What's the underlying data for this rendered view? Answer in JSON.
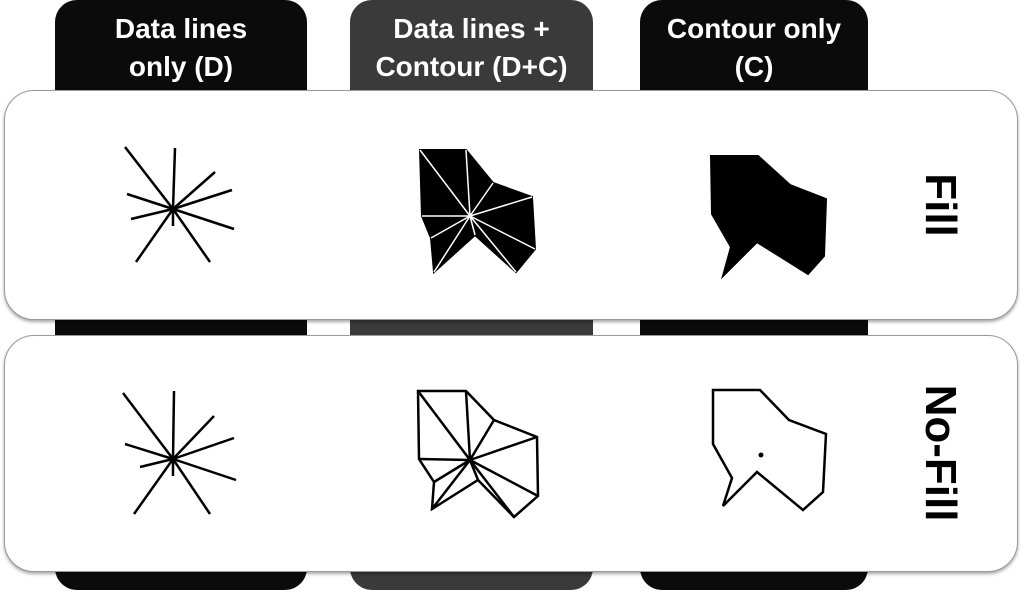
{
  "columns": [
    {
      "label_line1": "Data lines",
      "label_line2": "only (D)",
      "color": "#0b0b0b"
    },
    {
      "label_line1": "Data lines +",
      "label_line2": "Contour (D+C)",
      "color": "#3a3a3a"
    },
    {
      "label_line1": "Contour only",
      "label_line2": "(C)",
      "color": "#0b0b0b"
    }
  ],
  "rows": [
    {
      "label": "Fill"
    },
    {
      "label": "No-Fill"
    }
  ]
}
